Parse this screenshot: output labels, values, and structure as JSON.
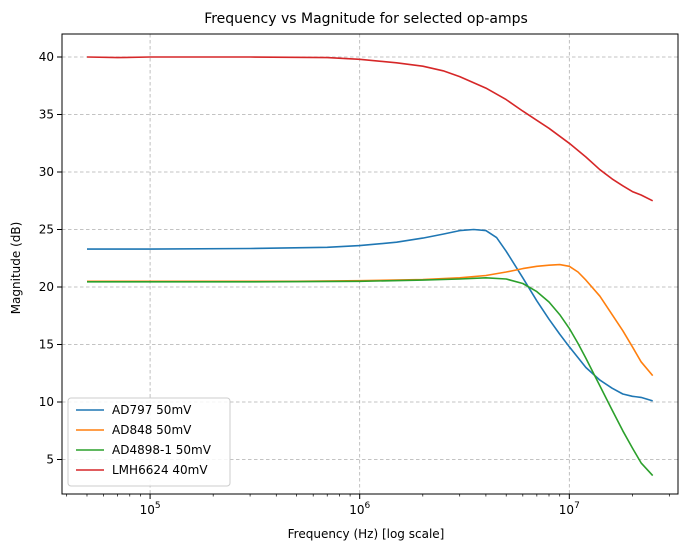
{
  "chart_data": {
    "type": "line",
    "title": "Frequency vs Magnitude for selected op-amps",
    "xlabel": "Frequency (Hz) [log scale]",
    "ylabel": "Magnitude (dB)",
    "x_scale": "log",
    "xlim": [
      38000,
      33000000
    ],
    "ylim": [
      2.0,
      42.0
    ],
    "x_ticks": [
      {
        "value": 100000,
        "base": "10",
        "exp": "5"
      },
      {
        "value": 1000000,
        "base": "10",
        "exp": "6"
      },
      {
        "value": 10000000,
        "base": "10",
        "exp": "7"
      }
    ],
    "y_ticks": [
      5,
      10,
      15,
      20,
      25,
      30,
      35,
      40
    ],
    "grid": true,
    "legend_position": "lower-left",
    "series": [
      {
        "name": "AD797 50mV",
        "color": "#1f77b4",
        "x": [
          50000,
          60000,
          100000,
          300000,
          700000,
          1000000,
          1500000,
          2000000,
          2500000,
          3000000,
          3500000,
          4000000,
          4500000,
          5000000,
          6000000,
          7000000,
          8000000,
          9000000,
          10000000,
          12000000,
          14000000,
          16000000,
          18000000,
          20000000,
          22000000,
          25000000
        ],
        "y": [
          23.3,
          23.3,
          23.3,
          23.35,
          23.45,
          23.6,
          23.9,
          24.25,
          24.6,
          24.9,
          25.0,
          24.9,
          24.3,
          23.1,
          20.8,
          18.8,
          17.2,
          15.9,
          14.8,
          13.0,
          11.9,
          11.2,
          10.7,
          10.5,
          10.4,
          10.1
        ]
      },
      {
        "name": "AD848 50mV",
        "color": "#ff7f0e",
        "x": [
          50000,
          100000,
          500000,
          1000000,
          2000000,
          3000000,
          4000000,
          5000000,
          6000000,
          7000000,
          8000000,
          9000000,
          10000000,
          11000000,
          12000000,
          14000000,
          16000000,
          18000000,
          20000000,
          22000000,
          25000000
        ],
        "y": [
          20.5,
          20.5,
          20.5,
          20.55,
          20.65,
          20.8,
          21.0,
          21.3,
          21.6,
          21.8,
          21.9,
          21.95,
          21.8,
          21.3,
          20.6,
          19.2,
          17.6,
          16.2,
          14.8,
          13.5,
          12.3
        ]
      },
      {
        "name": "AD4898-1 50mV",
        "color": "#2ca02c",
        "x": [
          50000,
          100000,
          300000,
          1000000,
          2000000,
          3000000,
          4000000,
          5000000,
          6000000,
          7000000,
          8000000,
          9000000,
          10000000,
          11000000,
          12000000,
          14000000,
          16000000,
          18000000,
          20000000,
          22000000,
          25000000
        ],
        "y": [
          20.45,
          20.45,
          20.45,
          20.5,
          20.6,
          20.7,
          20.8,
          20.7,
          20.3,
          19.6,
          18.7,
          17.6,
          16.4,
          15.1,
          13.8,
          11.4,
          9.3,
          7.5,
          6.0,
          4.7,
          3.6
        ]
      },
      {
        "name": "LMH6624 40mV",
        "color": "#d62728",
        "x": [
          50000,
          70000,
          100000,
          300000,
          700000,
          1000000,
          1500000,
          2000000,
          2500000,
          3000000,
          4000000,
          5000000,
          6000000,
          7000000,
          8000000,
          10000000,
          12000000,
          14000000,
          16000000,
          18000000,
          20000000,
          22000000,
          25000000
        ],
        "y": [
          40.0,
          39.95,
          40.0,
          40.0,
          39.95,
          39.8,
          39.5,
          39.2,
          38.8,
          38.3,
          37.3,
          36.3,
          35.3,
          34.5,
          33.8,
          32.5,
          31.3,
          30.2,
          29.4,
          28.8,
          28.3,
          28.0,
          27.5
        ]
      }
    ]
  }
}
